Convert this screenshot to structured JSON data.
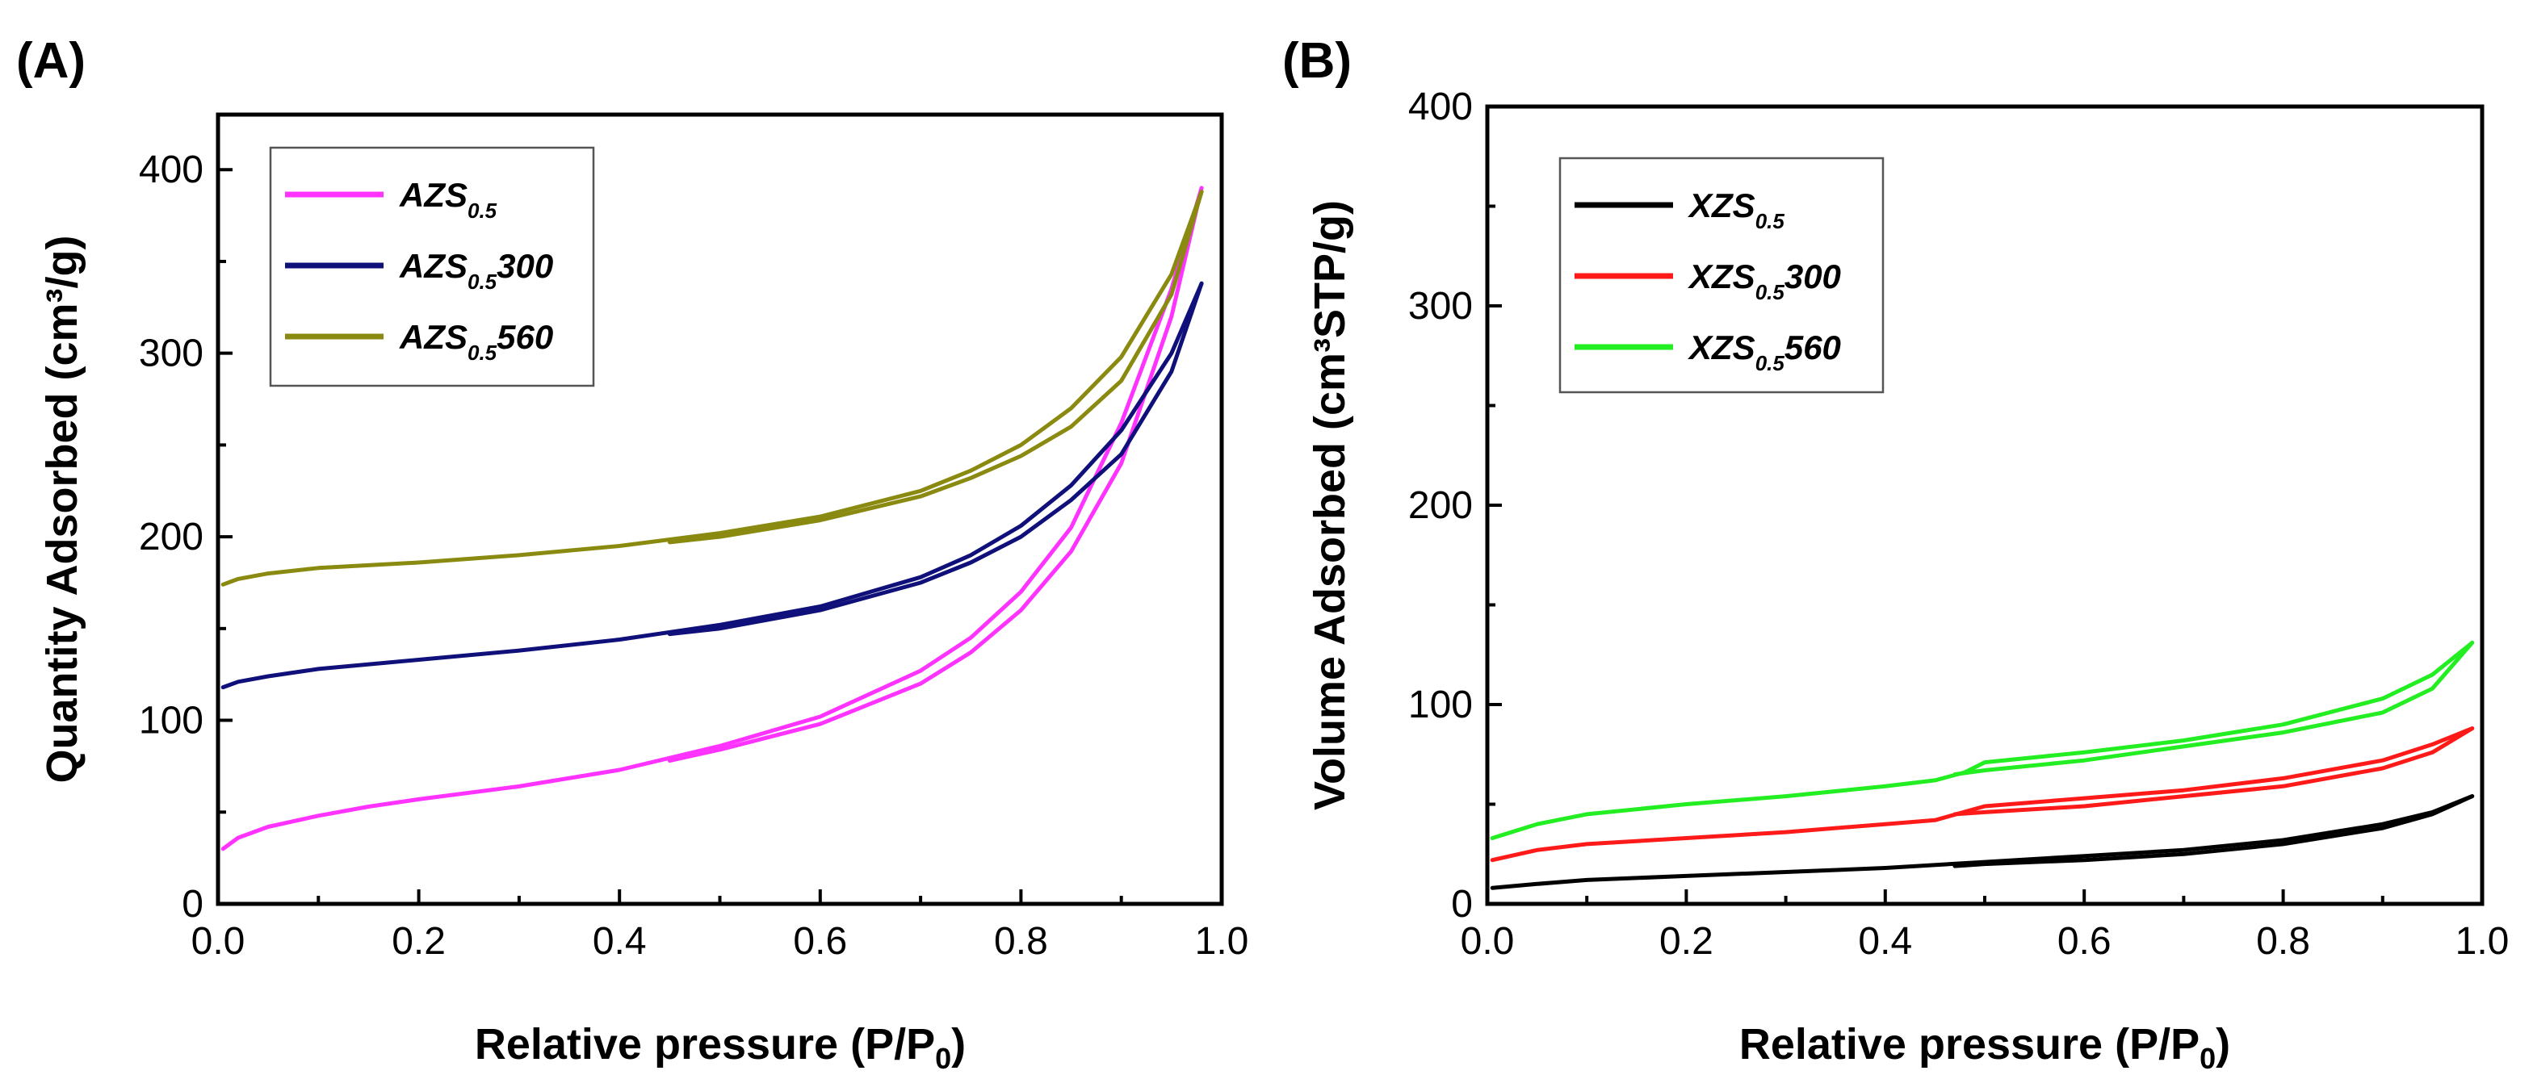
{
  "chart_data": [
    {
      "panel_label": "(A)",
      "type": "line",
      "xlabel": "Relative pressure (P/P0)",
      "xlabel_main": "Relative pressure (P/P",
      "xlabel_sub": "0",
      "xlabel_end": ")",
      "ylabel": "Quantity Adsorbed (cm³/g)",
      "xlim": [
        0.0,
        1.0
      ],
      "ylim": [
        0,
        430
      ],
      "xticks": [
        "0.0",
        "0.2",
        "0.4",
        "0.6",
        "0.8",
        "1.0"
      ],
      "yticks": [
        "0",
        "100",
        "200",
        "300",
        "400"
      ],
      "legend_position": "top-left",
      "series": [
        {
          "name": "AZS0.5",
          "base": "AZS",
          "sub": "0.5",
          "suffix": "",
          "color": "#ff33ff",
          "adsorption": [
            [
              0.005,
              30
            ],
            [
              0.02,
              36
            ],
            [
              0.05,
              42
            ],
            [
              0.1,
              48
            ],
            [
              0.15,
              53
            ],
            [
              0.2,
              57
            ],
            [
              0.3,
              64
            ],
            [
              0.4,
              73
            ],
            [
              0.5,
              86
            ],
            [
              0.6,
              102
            ],
            [
              0.7,
              127
            ],
            [
              0.75,
              145
            ],
            [
              0.8,
              170
            ],
            [
              0.85,
              205
            ],
            [
              0.9,
              262
            ],
            [
              0.95,
              335
            ],
            [
              0.98,
              390
            ]
          ],
          "desorption": [
            [
              0.98,
              390
            ],
            [
              0.95,
              320
            ],
            [
              0.9,
              240
            ],
            [
              0.85,
              192
            ],
            [
              0.8,
              160
            ],
            [
              0.75,
              137
            ],
            [
              0.7,
              120
            ],
            [
              0.6,
              98
            ],
            [
              0.5,
              84
            ],
            [
              0.45,
              78
            ]
          ]
        },
        {
          "name": "AZS0.5300",
          "base": "AZS",
          "sub": "0.5",
          "suffix": "300",
          "color": "#10107a",
          "adsorption": [
            [
              0.005,
              118
            ],
            [
              0.02,
              121
            ],
            [
              0.05,
              124
            ],
            [
              0.1,
              128
            ],
            [
              0.2,
              133
            ],
            [
              0.3,
              138
            ],
            [
              0.4,
              144
            ],
            [
              0.5,
              152
            ],
            [
              0.6,
              162
            ],
            [
              0.7,
              178
            ],
            [
              0.75,
              190
            ],
            [
              0.8,
              206
            ],
            [
              0.85,
              228
            ],
            [
              0.9,
              258
            ],
            [
              0.95,
              300
            ],
            [
              0.98,
              338
            ]
          ],
          "desorption": [
            [
              0.98,
              338
            ],
            [
              0.95,
              290
            ],
            [
              0.9,
              245
            ],
            [
              0.85,
              220
            ],
            [
              0.8,
              200
            ],
            [
              0.75,
              186
            ],
            [
              0.7,
              175
            ],
            [
              0.6,
              160
            ],
            [
              0.5,
              150
            ],
            [
              0.45,
              147
            ]
          ]
        },
        {
          "name": "AZS0.5560",
          "base": "AZS",
          "sub": "0.5",
          "suffix": "560",
          "color": "#8a8a10",
          "adsorption": [
            [
              0.005,
              174
            ],
            [
              0.02,
              177
            ],
            [
              0.05,
              180
            ],
            [
              0.1,
              183
            ],
            [
              0.2,
              186
            ],
            [
              0.3,
              190
            ],
            [
              0.4,
              195
            ],
            [
              0.5,
              202
            ],
            [
              0.6,
              211
            ],
            [
              0.7,
              225
            ],
            [
              0.75,
              236
            ],
            [
              0.8,
              250
            ],
            [
              0.85,
              270
            ],
            [
              0.9,
              298
            ],
            [
              0.95,
              343
            ],
            [
              0.98,
              388
            ]
          ],
          "desorption": [
            [
              0.98,
              388
            ],
            [
              0.95,
              332
            ],
            [
              0.9,
              285
            ],
            [
              0.85,
              260
            ],
            [
              0.8,
              244
            ],
            [
              0.75,
              232
            ],
            [
              0.7,
              222
            ],
            [
              0.6,
              209
            ],
            [
              0.5,
              200
            ],
            [
              0.45,
              197
            ]
          ]
        }
      ]
    },
    {
      "panel_label": "(B)",
      "type": "line",
      "xlabel": "Relative pressure (P/P0)",
      "xlabel_main": "Relative pressure (P/P",
      "xlabel_sub": "0",
      "xlabel_end": ")",
      "ylabel": "Volume Adsorbed (cm³STP/g)",
      "xlim": [
        0.0,
        1.0
      ],
      "ylim": [
        0,
        400
      ],
      "xticks": [
        "0.0",
        "0.2",
        "0.4",
        "0.6",
        "0.8",
        "1.0"
      ],
      "yticks": [
        "0",
        "100",
        "200",
        "300",
        "400"
      ],
      "legend_position": "top-left",
      "series": [
        {
          "name": "XZS0.5",
          "base": "XZS",
          "sub": "0.5",
          "suffix": "",
          "color": "#000000",
          "adsorption": [
            [
              0.005,
              8
            ],
            [
              0.05,
              10
            ],
            [
              0.1,
              12
            ],
            [
              0.2,
              14
            ],
            [
              0.3,
              16
            ],
            [
              0.4,
              18
            ],
            [
              0.5,
              21
            ],
            [
              0.6,
              24
            ],
            [
              0.7,
              27
            ],
            [
              0.8,
              32
            ],
            [
              0.9,
              40
            ],
            [
              0.95,
              46
            ],
            [
              0.99,
              54
            ]
          ],
          "desorption": [
            [
              0.99,
              54
            ],
            [
              0.95,
              45
            ],
            [
              0.9,
              38
            ],
            [
              0.8,
              30
            ],
            [
              0.7,
              25
            ],
            [
              0.6,
              22
            ],
            [
              0.5,
              20
            ],
            [
              0.47,
              19
            ]
          ]
        },
        {
          "name": "XZS0.5300",
          "base": "XZS",
          "sub": "0.5",
          "suffix": "300",
          "color": "#ff1a1a",
          "adsorption": [
            [
              0.005,
              22
            ],
            [
              0.05,
              27
            ],
            [
              0.1,
              30
            ],
            [
              0.2,
              33
            ],
            [
              0.3,
              36
            ],
            [
              0.4,
              40
            ],
            [
              0.45,
              42
            ],
            [
              0.5,
              49
            ],
            [
              0.6,
              53
            ],
            [
              0.7,
              57
            ],
            [
              0.8,
              63
            ],
            [
              0.9,
              72
            ],
            [
              0.95,
              80
            ],
            [
              0.99,
              88
            ]
          ],
          "desorption": [
            [
              0.99,
              88
            ],
            [
              0.95,
              76
            ],
            [
              0.9,
              68
            ],
            [
              0.8,
              59
            ],
            [
              0.7,
              54
            ],
            [
              0.6,
              49
            ],
            [
              0.5,
              46
            ],
            [
              0.47,
              45
            ]
          ]
        },
        {
          "name": "XZS0.5560",
          "base": "XZS",
          "sub": "0.5",
          "suffix": "560",
          "color": "#22ee22",
          "adsorption": [
            [
              0.005,
              33
            ],
            [
              0.05,
              40
            ],
            [
              0.1,
              45
            ],
            [
              0.2,
              50
            ],
            [
              0.3,
              54
            ],
            [
              0.4,
              59
            ],
            [
              0.45,
              62
            ],
            [
              0.48,
              66
            ],
            [
              0.5,
              71
            ],
            [
              0.6,
              76
            ],
            [
              0.7,
              82
            ],
            [
              0.8,
              90
            ],
            [
              0.9,
              103
            ],
            [
              0.95,
              115
            ],
            [
              0.99,
              131
            ]
          ],
          "desorption": [
            [
              0.99,
              131
            ],
            [
              0.95,
              108
            ],
            [
              0.9,
              96
            ],
            [
              0.8,
              86
            ],
            [
              0.7,
              79
            ],
            [
              0.6,
              72
            ],
            [
              0.5,
              67
            ],
            [
              0.47,
              65
            ]
          ]
        }
      ]
    }
  ]
}
